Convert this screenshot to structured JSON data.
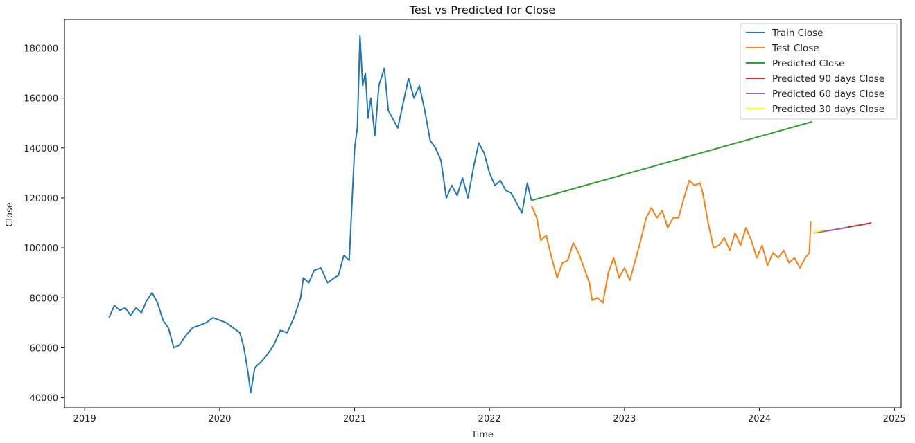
{
  "chart_data": {
    "type": "line",
    "title": "Test vs Predicted for Close",
    "xlabel": "Time",
    "ylabel": "Close",
    "xlim": [
      2018.85,
      2025.05
    ],
    "ylim": [
      36000,
      191500
    ],
    "x_ticks": [
      "2019",
      "2020",
      "2021",
      "2022",
      "2023",
      "2024",
      "2025"
    ],
    "y_ticks": [
      "40000",
      "60000",
      "80000",
      "100000",
      "120000",
      "140000",
      "160000",
      "180000"
    ],
    "grid": false,
    "legend_position": "top-right",
    "series": [
      {
        "name": "Train Close",
        "color": "#1f77b4",
        "x": [
          2019.18,
          2019.22,
          2019.26,
          2019.3,
          2019.34,
          2019.38,
          2019.42,
          2019.46,
          2019.5,
          2019.54,
          2019.58,
          2019.62,
          2019.66,
          2019.7,
          2019.75,
          2019.8,
          2019.85,
          2019.9,
          2019.95,
          2020.0,
          2020.05,
          2020.1,
          2020.15,
          2020.18,
          2020.21,
          2020.23,
          2020.26,
          2020.3,
          2020.35,
          2020.4,
          2020.45,
          2020.5,
          2020.55,
          2020.6,
          2020.62,
          2020.66,
          2020.7,
          2020.75,
          2020.8,
          2020.85,
          2020.88,
          2020.92,
          2020.96,
          2021.0,
          2021.02,
          2021.04,
          2021.06,
          2021.08,
          2021.1,
          2021.12,
          2021.15,
          2021.18,
          2021.22,
          2021.25,
          2021.28,
          2021.32,
          2021.36,
          2021.4,
          2021.44,
          2021.48,
          2021.52,
          2021.56,
          2021.6,
          2021.64,
          2021.68,
          2021.72,
          2021.76,
          2021.8,
          2021.84,
          2021.88,
          2021.92,
          2021.96,
          2022.0,
          2022.04,
          2022.08,
          2022.12,
          2022.16,
          2022.2,
          2022.24,
          2022.28,
          2022.31
        ],
        "y": [
          72000,
          77000,
          75000,
          76000,
          73000,
          76000,
          74000,
          79000,
          82000,
          78000,
          71000,
          68000,
          60000,
          61000,
          65000,
          68000,
          69000,
          70000,
          72000,
          71000,
          70000,
          68000,
          66000,
          60000,
          50000,
          42000,
          52000,
          54000,
          57000,
          61000,
          67000,
          66000,
          72000,
          80000,
          88000,
          86000,
          91000,
          92000,
          86000,
          88000,
          89000,
          97000,
          95000,
          140000,
          148000,
          185000,
          165000,
          170000,
          152000,
          160000,
          145000,
          165000,
          172000,
          155000,
          152000,
          148000,
          158000,
          168000,
          160000,
          165000,
          155000,
          143000,
          140000,
          135000,
          120000,
          125000,
          121000,
          128000,
          120000,
          132000,
          142000,
          138000,
          130000,
          125000,
          127000,
          123000,
          122000,
          118000,
          114000,
          126000,
          119000
        ]
      },
      {
        "name": "Test Close",
        "color": "#ff7f0e",
        "x": [
          2022.31,
          2022.35,
          2022.38,
          2022.42,
          2022.46,
          2022.5,
          2022.54,
          2022.58,
          2022.62,
          2022.66,
          2022.7,
          2022.74,
          2022.76,
          2022.8,
          2022.84,
          2022.88,
          2022.92,
          2022.96,
          2023.0,
          2023.04,
          2023.08,
          2023.12,
          2023.16,
          2023.2,
          2023.24,
          2023.28,
          2023.32,
          2023.36,
          2023.4,
          2023.44,
          2023.48,
          2023.52,
          2023.56,
          2023.58,
          2023.62,
          2023.66,
          2023.7,
          2023.74,
          2023.78,
          2023.82,
          2023.86,
          2023.9,
          2023.94,
          2023.98,
          2024.02,
          2024.06,
          2024.1,
          2024.14,
          2024.18,
          2024.22,
          2024.26,
          2024.3,
          2024.34,
          2024.37,
          2024.38
        ],
        "y": [
          117000,
          112000,
          103000,
          105000,
          96000,
          88000,
          94000,
          95000,
          102000,
          98000,
          92000,
          86000,
          79000,
          80000,
          78000,
          90000,
          96000,
          88000,
          92000,
          87000,
          95000,
          103000,
          112000,
          116000,
          112000,
          115000,
          108000,
          112000,
          112000,
          120000,
          127000,
          125000,
          126000,
          122000,
          110000,
          100000,
          101000,
          104000,
          99000,
          106000,
          101000,
          108000,
          103000,
          96000,
          101000,
          93000,
          98000,
          96000,
          99000,
          94000,
          96000,
          92000,
          96000,
          98000,
          110500
        ]
      },
      {
        "name": "Predicted Close",
        "color": "#2ca02c",
        "x": [
          2022.31,
          2024.39
        ],
        "y": [
          119000,
          150500
        ]
      },
      {
        "name": "Predicted 90 days Close",
        "color": "#d62728",
        "x": [
          2024.4,
          2024.55,
          2024.7,
          2024.83
        ],
        "y": [
          106000,
          107200,
          108700,
          110000
        ]
      },
      {
        "name": "Predicted 60 days Close",
        "color": "#9467bd",
        "x": [
          2024.4,
          2024.5,
          2024.6,
          2024.66
        ],
        "y": [
          106000,
          106800,
          107700,
          108300
        ]
      },
      {
        "name": "Predicted 30 days Close",
        "color": "#ffff00",
        "x": [
          2024.4,
          2024.45,
          2024.48
        ],
        "y": [
          106200,
          106800,
          107200
        ]
      }
    ]
  }
}
